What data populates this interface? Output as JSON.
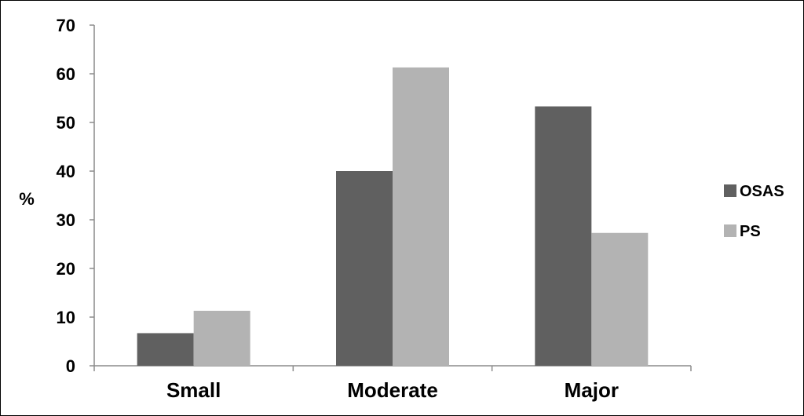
{
  "chart_data": {
    "type": "bar",
    "title": "",
    "xlabel": "",
    "ylabel": "%",
    "ylim": [
      0,
      70
    ],
    "yticks": [
      0,
      10,
      20,
      30,
      40,
      50,
      60,
      70
    ],
    "grid": false,
    "legend_position": "right",
    "categories": [
      "Small",
      "Moderate",
      "Major"
    ],
    "series": [
      {
        "name": "OSAS",
        "color": "#606060",
        "values": [
          6.7,
          40,
          53.3
        ]
      },
      {
        "name": "PS",
        "color": "#b3b3b3",
        "values": [
          11.3,
          61.3,
          27.3
        ]
      }
    ]
  }
}
